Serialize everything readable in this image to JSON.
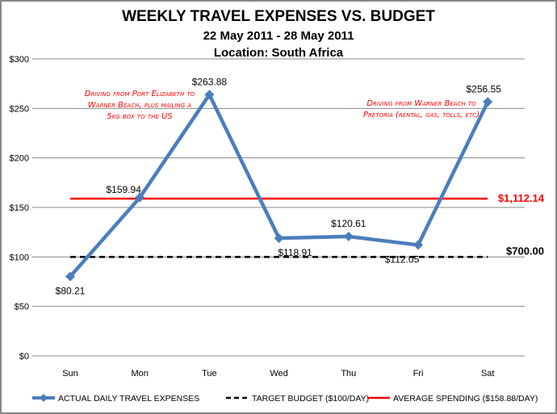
{
  "chart_data": {
    "type": "line",
    "title": "WEEKLY TRAVEL EXPENSES VS. BUDGET",
    "subtitle": "22 May 2011 - 28 May 2011",
    "subtitle2": "Location: South Africa",
    "categories": [
      "Sun",
      "Mon",
      "Tue",
      "Wed",
      "Thu",
      "Fri",
      "Sat"
    ],
    "ylim": [
      0,
      300
    ],
    "yticks": [
      0,
      50,
      100,
      150,
      200,
      250,
      300
    ],
    "ytick_labels": [
      "$0",
      "$50",
      "$100",
      "$150",
      "$200",
      "$250",
      "$300"
    ],
    "grid": true,
    "series": [
      {
        "name": "ACTUAL DAILY TRAVEL EXPENSES",
        "values": [
          80.21,
          159.94,
          263.88,
          118.91,
          120.61,
          112.05,
          256.55
        ],
        "labels": [
          "$80.21",
          "$159.94",
          "$263.88",
          "$118.91",
          "$120.61",
          "$112.05",
          "$256.55"
        ],
        "color": "#4a7ebb"
      },
      {
        "name": "TARGET BUDGET ($100/DAY)",
        "value": 100,
        "color": "#000000",
        "end_label": "$700.00"
      },
      {
        "name": "AVERAGE SPENDING ($158.88/DAY)",
        "value": 158.88,
        "color": "#ff0000",
        "end_label": "$1,112.14"
      }
    ],
    "annotations": [
      {
        "lines": [
          "Driving from Port Elizabeth to",
          "Warner Beach, plus mailing a",
          "5kg box to the US"
        ]
      },
      {
        "lines": [
          "Driving from Warner Beach to",
          "Pretoria (rental, gas, tolls, etc)"
        ]
      }
    ],
    "legend": "bottom"
  }
}
